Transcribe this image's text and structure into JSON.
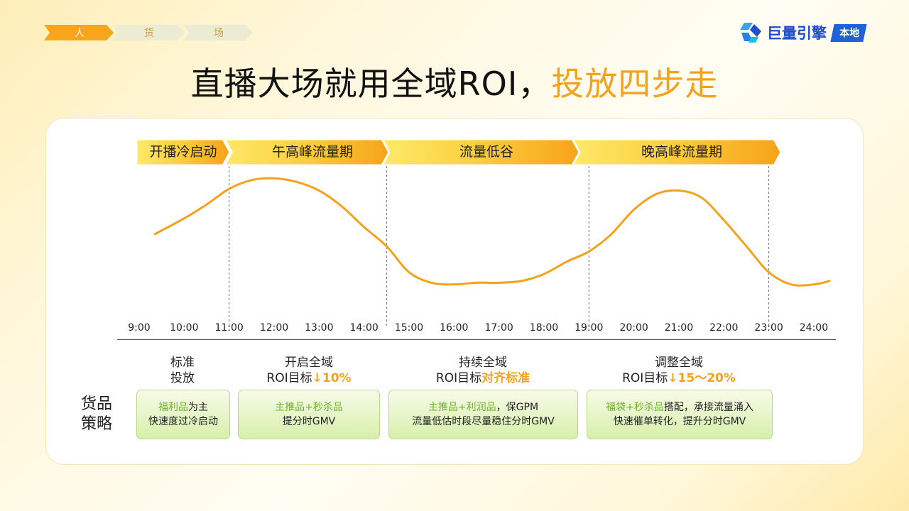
{
  "breadcrumb": [
    "人",
    "货",
    "场"
  ],
  "logo": {
    "name": "巨量引擎",
    "tag": "本地"
  },
  "title": {
    "main": "直播大场就用全域ROI，",
    "highlight": "投放四步走"
  },
  "phases": [
    "开播冷启动",
    "午高峰流量期",
    "流量低谷",
    "晚高峰流量期"
  ],
  "strategies": [
    {
      "line1": "标准",
      "line2": "投放",
      "em": ""
    },
    {
      "line1": "开启全域",
      "line2": "ROI目标",
      "em": "↓10%"
    },
    {
      "line1": "持续全域",
      "line2": "ROI目标",
      "em": "对齐标准"
    },
    {
      "line1": "调整全域",
      "line2": "ROI目标",
      "em": "↓15～20%"
    }
  ],
  "side_label": {
    "line1": "货品",
    "line2": "策略"
  },
  "goods": [
    {
      "hl": "福利品",
      "rest": "为主",
      "line2": "快速度过冷启动"
    },
    {
      "hl": "主推品+秒杀品",
      "rest": "",
      "line2": "提分时GMV"
    },
    {
      "hl": "主推品+利润品",
      "rest": "，保GPM",
      "line2": "流量低估时段尽量稳住分时GMV"
    },
    {
      "hl": "福袋+秒杀品",
      "rest": "搭配，承接流量涌入",
      "line2": "快速催单转化，提升分时GMV"
    }
  ],
  "chart_data": {
    "type": "line",
    "title": "",
    "xlabel": "",
    "ylabel": "",
    "x_ticks": [
      "9:00",
      "10:00",
      "11:00",
      "12:00",
      "13:00",
      "14:00",
      "15:00",
      "16:00",
      "17:00",
      "18:00",
      "19:00",
      "20:00",
      "21:00",
      "22:00",
      "23:00",
      "24:00"
    ],
    "x": [
      9.35,
      10,
      10.5,
      11,
      11.5,
      12,
      12.5,
      13,
      13.5,
      14,
      14.5,
      15,
      15.5,
      16,
      16.5,
      17,
      17.5,
      18,
      18.5,
      19,
      19.5,
      20,
      20.5,
      21,
      21.5,
      22,
      22.5,
      23,
      23.5,
      24,
      24.35
    ],
    "values": [
      45,
      54,
      62,
      71,
      76,
      77,
      75,
      70,
      61,
      49,
      38,
      23,
      17,
      16,
      17,
      17,
      18,
      22,
      29,
      35,
      45,
      59,
      68,
      70,
      66,
      53,
      38,
      23,
      16,
      16,
      18
    ],
    "ylim": [
      0,
      100
    ],
    "phase_boundaries": [
      11,
      14.5,
      19,
      23
    ],
    "line_color": "#f4a21d",
    "grid": false
  }
}
